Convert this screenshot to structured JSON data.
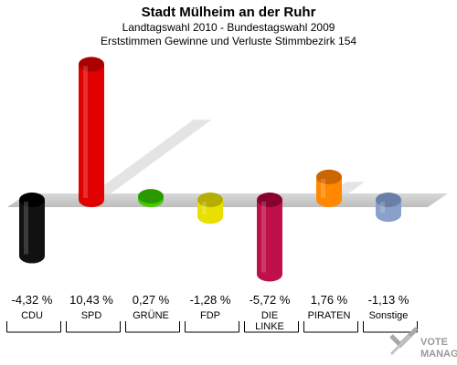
{
  "chart_data": {
    "type": "bar",
    "title": "Stadt Mülheim an der Ruhr",
    "subtitle": "Landtagswahl 2010 - Bundestagswahl 2009",
    "subtitle2": "Erststimmen Gewinne und Verluste Stimmbezirk 154",
    "categories": [
      {
        "lines": [
          "CDU"
        ]
      },
      {
        "lines": [
          "SPD"
        ]
      },
      {
        "lines": [
          "GRÜNE"
        ]
      },
      {
        "lines": [
          "FDP"
        ]
      },
      {
        "lines": [
          "DIE",
          "LINKE"
        ]
      },
      {
        "lines": [
          "PIRATEN"
        ]
      },
      {
        "lines": [
          "Sonstige"
        ]
      }
    ],
    "values": [
      -4.32,
      10.43,
      0.27,
      -1.28,
      -5.72,
      1.76,
      -1.13
    ],
    "value_labels": [
      "-4,32 %",
      "10,43 %",
      "0,27 %",
      "-1,28 %",
      "-5,72 %",
      "1,76 %",
      "-1,13 %"
    ],
    "colors": [
      "#111111",
      "#e00000",
      "#44cc00",
      "#e8e000",
      "#c0104a",
      "#ff8800",
      "#8aa0cc"
    ],
    "dark_colors": [
      "#000000",
      "#aa0000",
      "#2a9900",
      "#b5ae00",
      "#8a0030",
      "#cc6600",
      "#6a7fa8"
    ],
    "logo_lines": [
      "VOTE",
      "MANAGER"
    ]
  }
}
